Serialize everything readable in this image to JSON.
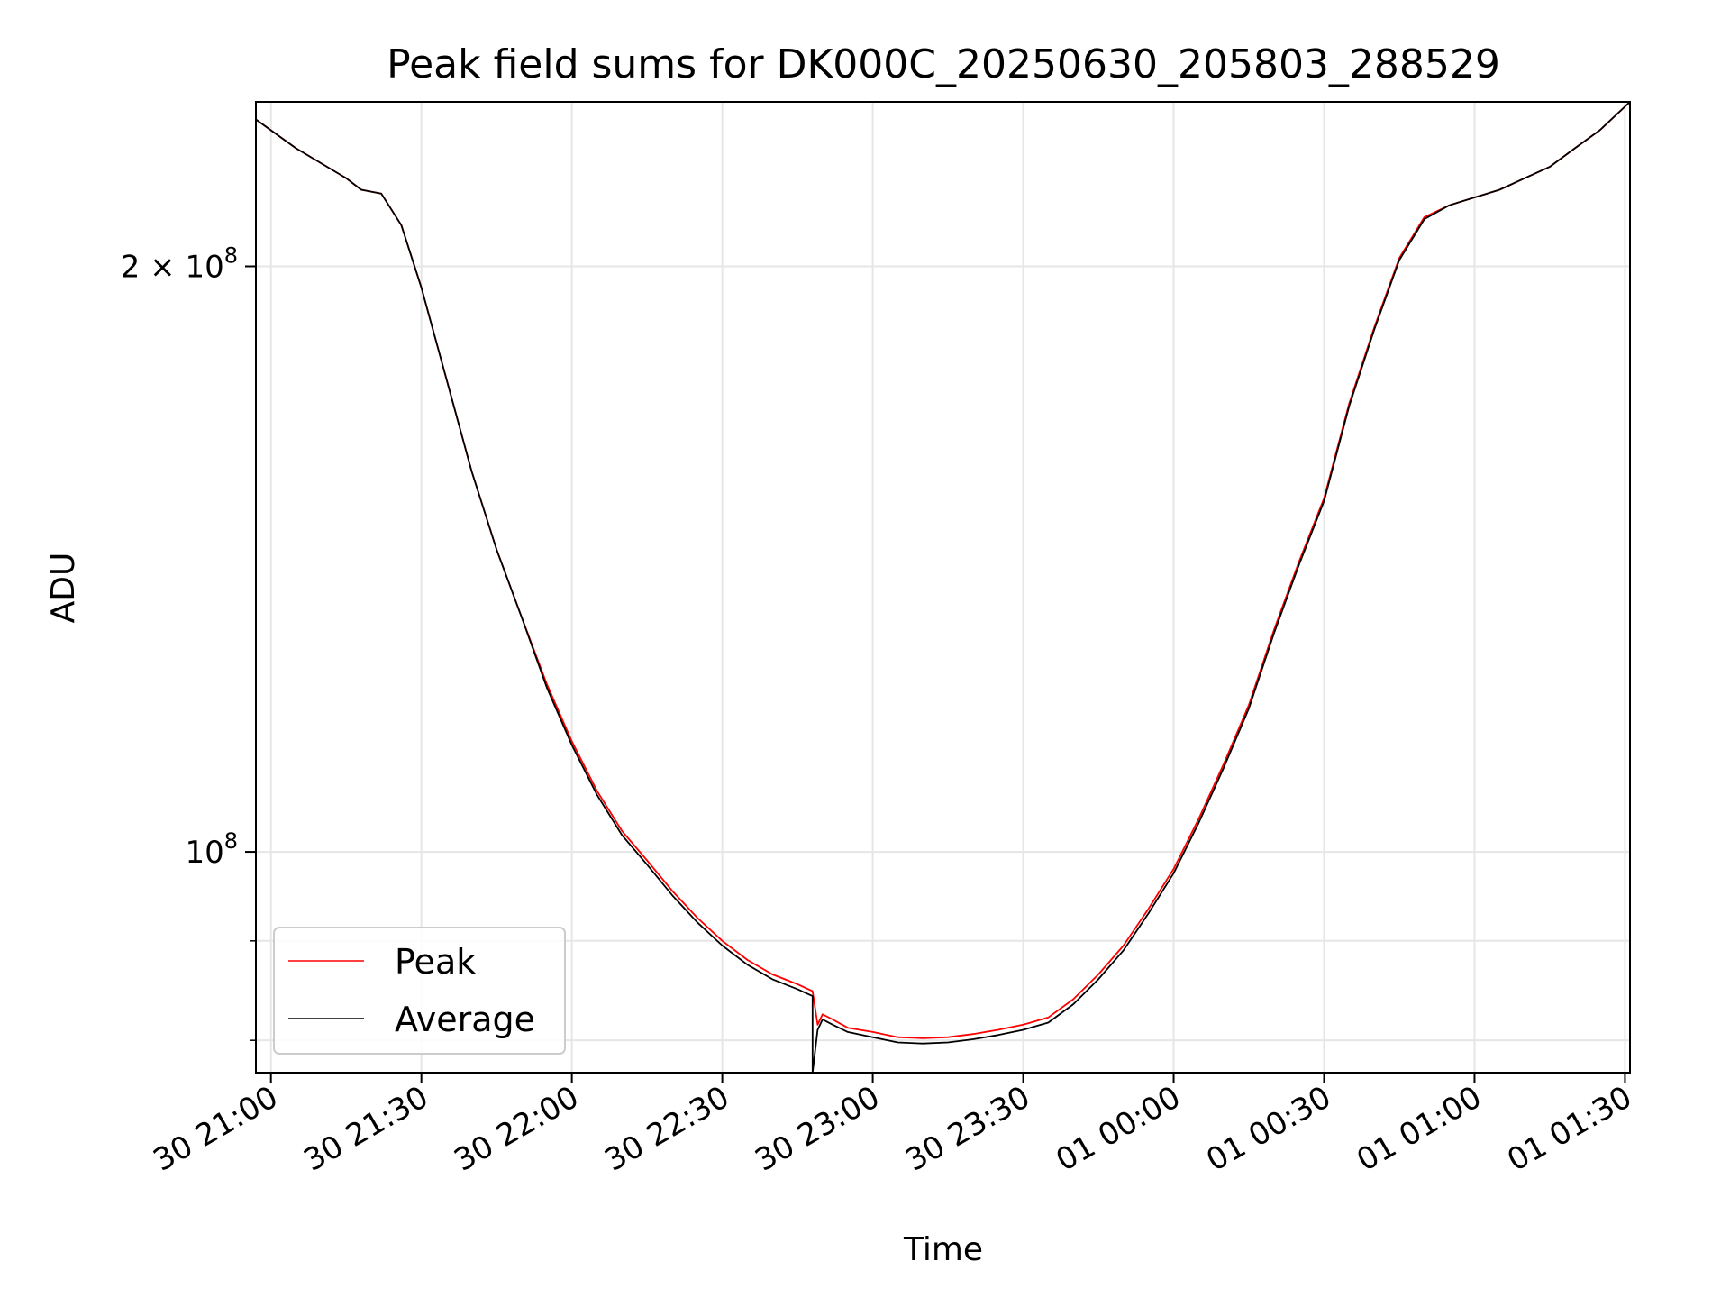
{
  "chart_data": {
    "type": "line",
    "title": "Peak field sums for DK000C_20250630_205803_288529",
    "xlabel": "Time",
    "ylabel": "ADU",
    "y_scale": "log",
    "xlim": [
      "2025-06-30 20:57",
      "2025-07-01 01:31"
    ],
    "ylim": [
      77000000,
      243000000
    ],
    "x_ticks": [
      {
        "value": "2025-06-30 21:00",
        "label": "30 21:00"
      },
      {
        "value": "2025-06-30 21:30",
        "label": "30 21:30"
      },
      {
        "value": "2025-06-30 22:00",
        "label": "30 22:00"
      },
      {
        "value": "2025-06-30 22:30",
        "label": "30 22:30"
      },
      {
        "value": "2025-06-30 23:00",
        "label": "30 23:00"
      },
      {
        "value": "2025-06-30 23:30",
        "label": "30 23:30"
      },
      {
        "value": "2025-07-01 00:00",
        "label": "01 00:00"
      },
      {
        "value": "2025-07-01 00:30",
        "label": "01 00:30"
      },
      {
        "value": "2025-07-01 01:00",
        "label": "01 01:00"
      },
      {
        "value": "2025-07-01 01:30",
        "label": "01 01:30"
      }
    ],
    "y_major_ticks": [
      {
        "value": 100000000,
        "base": "10",
        "exp": "8",
        "coef": ""
      },
      {
        "value": 200000000,
        "base": "10",
        "exp": "8",
        "coef": "2"
      }
    ],
    "y_minor_ticks": [
      80000000,
      90000000
    ],
    "grid": true,
    "legend_position": "lower-left",
    "series": [
      {
        "name": "Peak",
        "color": "#ff0000",
        "x": [
          "2025-06-30 20:57",
          "2025-06-30 21:05",
          "2025-06-30 21:15",
          "2025-06-30 21:18",
          "2025-06-30 21:22",
          "2025-06-30 21:26",
          "2025-06-30 21:30",
          "2025-06-30 21:35",
          "2025-06-30 21:40",
          "2025-06-30 21:45",
          "2025-06-30 21:50",
          "2025-06-30 21:55",
          "2025-06-30 22:00",
          "2025-06-30 22:05",
          "2025-06-30 22:10",
          "2025-06-30 22:15",
          "2025-06-30 22:20",
          "2025-06-30 22:25",
          "2025-06-30 22:30",
          "2025-06-30 22:35",
          "2025-06-30 22:40",
          "2025-06-30 22:45",
          "2025-06-30 22:48",
          "2025-06-30 22:49",
          "2025-06-30 22:50",
          "2025-06-30 22:52",
          "2025-06-30 22:55",
          "2025-06-30 23:00",
          "2025-06-30 23:05",
          "2025-06-30 23:10",
          "2025-06-30 23:15",
          "2025-06-30 23:20",
          "2025-06-30 23:25",
          "2025-06-30 23:30",
          "2025-06-30 23:35",
          "2025-06-30 23:40",
          "2025-06-30 23:45",
          "2025-06-30 23:50",
          "2025-06-30 23:55",
          "2025-07-01 00:00",
          "2025-07-01 00:05",
          "2025-07-01 00:10",
          "2025-07-01 00:15",
          "2025-07-01 00:20",
          "2025-07-01 00:25",
          "2025-07-01 00:30",
          "2025-07-01 00:35",
          "2025-07-01 00:40",
          "2025-07-01 00:45",
          "2025-07-01 00:50",
          "2025-07-01 00:55",
          "2025-07-01 01:00",
          "2025-07-01 01:05",
          "2025-07-01 01:10",
          "2025-07-01 01:15",
          "2025-07-01 01:20",
          "2025-07-01 01:25",
          "2025-07-01 01:31"
        ],
        "values": [
          238000000,
          230000000,
          222000000,
          219000000,
          218000000,
          210000000,
          195000000,
          175000000,
          157000000,
          143000000,
          132000000,
          122000000,
          114000000,
          107500000,
          102500000,
          99000000,
          95500000,
          92500000,
          90000000,
          88000000,
          86500000,
          85500000,
          84800000,
          81500000,
          82500000,
          82000000,
          81200000,
          80800000,
          80300000,
          80200000,
          80300000,
          80600000,
          81000000,
          81500000,
          82200000,
          84000000,
          86500000,
          89500000,
          93500000,
          98000000,
          104000000,
          111000000,
          119000000,
          130000000,
          141000000,
          152000000,
          170000000,
          186000000,
          202000000,
          212000000,
          215000000,
          217000000,
          219000000,
          222000000,
          225000000,
          230000000,
          235000000,
          243000000
        ]
      },
      {
        "name": "Average",
        "color": "#000000",
        "x": [
          "2025-06-30 20:57",
          "2025-06-30 21:05",
          "2025-06-30 21:15",
          "2025-06-30 21:18",
          "2025-06-30 21:22",
          "2025-06-30 21:26",
          "2025-06-30 21:30",
          "2025-06-30 21:35",
          "2025-06-30 21:40",
          "2025-06-30 21:45",
          "2025-06-30 21:50",
          "2025-06-30 21:55",
          "2025-06-30 22:00",
          "2025-06-30 22:05",
          "2025-06-30 22:10",
          "2025-06-30 22:15",
          "2025-06-30 22:20",
          "2025-06-30 22:25",
          "2025-06-30 22:30",
          "2025-06-30 22:35",
          "2025-06-30 22:40",
          "2025-06-30 22:45",
          "2025-06-30 22:48",
          "2025-06-30 22:48",
          "2025-06-30 22:49",
          "2025-06-30 22:50",
          "2025-06-30 22:52",
          "2025-06-30 22:55",
          "2025-06-30 23:00",
          "2025-06-30 23:05",
          "2025-06-30 23:10",
          "2025-06-30 23:15",
          "2025-06-30 23:20",
          "2025-06-30 23:25",
          "2025-06-30 23:30",
          "2025-06-30 23:35",
          "2025-06-30 23:40",
          "2025-06-30 23:45",
          "2025-06-30 23:50",
          "2025-06-30 23:55",
          "2025-07-01 00:00",
          "2025-07-01 00:05",
          "2025-07-01 00:10",
          "2025-07-01 00:15",
          "2025-07-01 00:20",
          "2025-07-01 00:25",
          "2025-07-01 00:30",
          "2025-07-01 00:35",
          "2025-07-01 00:40",
          "2025-07-01 00:45",
          "2025-07-01 00:50",
          "2025-07-01 00:55",
          "2025-07-01 01:00",
          "2025-07-01 01:05",
          "2025-07-01 01:10",
          "2025-07-01 01:15",
          "2025-07-01 01:20",
          "2025-07-01 01:25",
          "2025-07-01 01:31"
        ],
        "values": [
          238000000,
          230000000,
          222000000,
          219000000,
          218000000,
          210000000,
          195000000,
          175000000,
          157000000,
          143000000,
          132000000,
          121500000,
          113500000,
          107000000,
          102000000,
          98500000,
          95000000,
          92000000,
          89500000,
          87500000,
          86000000,
          85000000,
          84300000,
          77000000,
          81000000,
          82000000,
          81500000,
          80800000,
          80300000,
          79800000,
          79700000,
          79800000,
          80100000,
          80500000,
          81000000,
          81700000,
          83500000,
          86000000,
          89000000,
          93000000,
          97500000,
          103500000,
          110500000,
          118500000,
          129500000,
          140500000,
          151500000,
          169500000,
          185500000,
          201500000,
          211500000,
          215000000,
          217000000,
          219000000,
          222000000,
          225000000,
          230000000,
          235000000,
          243000000
        ]
      }
    ]
  }
}
